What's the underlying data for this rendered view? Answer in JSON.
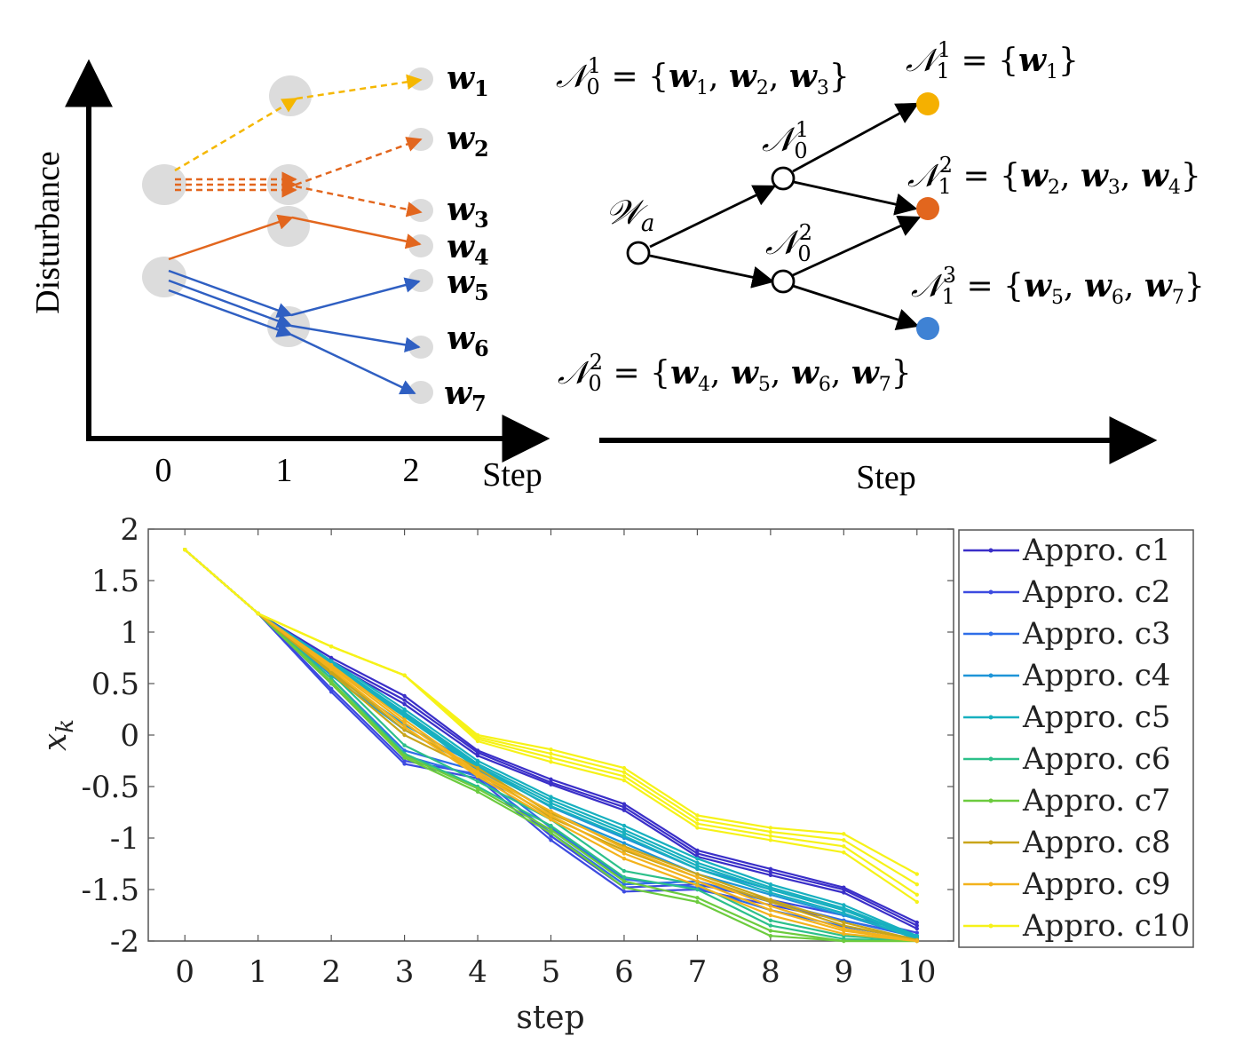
{
  "top_left": {
    "ylabel": "Disturbance",
    "xlabel": "Step",
    "steps": [
      "0",
      "1",
      "2"
    ],
    "outcomes": [
      "w1",
      "w2",
      "w3",
      "w4",
      "w5",
      "w6",
      "w7"
    ],
    "colors": {
      "yellow": "#f5b700",
      "orange": "#e2661e",
      "blue": "#2f5fc2",
      "node": "#dcdcdc"
    }
  },
  "top_right": {
    "xlabel": "Step",
    "root": "Wa",
    "level0": [
      {
        "name": "N0^1",
        "set": [
          "w1",
          "w2",
          "w3"
        ]
      },
      {
        "name": "N0^2",
        "set": [
          "w4",
          "w5",
          "w6",
          "w7"
        ]
      }
    ],
    "level1": [
      {
        "name": "N1^1",
        "set": [
          "w1"
        ],
        "color": "#f5b000"
      },
      {
        "name": "N1^2",
        "set": [
          "w2",
          "w3",
          "w4"
        ],
        "color": "#e2661e"
      },
      {
        "name": "N1^3",
        "set": [
          "w5",
          "w6",
          "w7"
        ],
        "color": "#3f82d4"
      }
    ]
  },
  "chart_data": {
    "type": "line",
    "xlabel": "step",
    "ylabel": "x_k",
    "xlim": [
      -0.5,
      10.5
    ],
    "ylim": [
      -2,
      2
    ],
    "xticks": [
      0,
      1,
      2,
      3,
      4,
      5,
      6,
      7,
      8,
      9,
      10
    ],
    "yticks": [
      2,
      1.5,
      1,
      0.5,
      0,
      -0.5,
      -1,
      -1.5,
      -2
    ],
    "ytick_labels": [
      "2",
      "1.5",
      "1",
      "0.5",
      "0",
      "-0.5",
      "-1",
      "-1.5",
      "-2"
    ],
    "legend_position": "right",
    "series": [
      {
        "name": "Appro. c1",
        "color": "#3a2fc8",
        "trajectories": [
          [
            1.8,
            1.18,
            0.75,
            0.38,
            -0.15,
            -0.43,
            -0.67,
            -1.12,
            -1.3,
            -1.48,
            -1.82
          ],
          [
            1.8,
            1.18,
            0.72,
            0.34,
            -0.17,
            -0.46,
            -0.7,
            -1.15,
            -1.33,
            -1.5,
            -1.85
          ],
          [
            1.8,
            1.18,
            0.7,
            0.3,
            -0.2,
            -0.48,
            -0.73,
            -1.18,
            -1.36,
            -1.53,
            -1.88
          ]
        ]
      },
      {
        "name": "Appro. c2",
        "color": "#3d4be0",
        "trajectories": [
          [
            1.8,
            1.18,
            0.45,
            -0.25,
            -0.38,
            -0.98,
            -1.48,
            -1.45,
            -1.6,
            -1.75,
            -1.92
          ],
          [
            1.8,
            1.18,
            0.42,
            -0.28,
            -0.42,
            -1.02,
            -1.52,
            -1.5,
            -1.65,
            -1.8,
            -1.95
          ]
        ]
      },
      {
        "name": "Appro. c3",
        "color": "#2f6ee8",
        "trajectories": [
          [
            1.8,
            1.18,
            0.5,
            -0.2,
            -0.4,
            -0.95,
            -1.45,
            -1.42,
            -1.62,
            -1.8,
            -1.96
          ],
          [
            1.8,
            1.18,
            0.55,
            -0.15,
            -0.35,
            -0.9,
            -1.4,
            -1.48,
            -1.7,
            -1.86,
            -1.98
          ]
        ]
      },
      {
        "name": "Appro. c4",
        "color": "#1e95d8",
        "trajectories": [
          [
            1.8,
            1.18,
            0.6,
            0.1,
            -0.3,
            -0.7,
            -1.0,
            -1.3,
            -1.5,
            -1.7,
            -1.95
          ],
          [
            1.8,
            1.18,
            0.58,
            0.05,
            -0.33,
            -0.75,
            -1.05,
            -1.35,
            -1.55,
            -1.75,
            -1.97
          ]
        ]
      },
      {
        "name": "Appro. c5",
        "color": "#17b0bf",
        "trajectories": [
          [
            1.8,
            1.18,
            0.72,
            0.25,
            -0.25,
            -0.6,
            -0.88,
            -1.2,
            -1.45,
            -1.65,
            -1.95
          ],
          [
            1.8,
            1.18,
            0.7,
            0.22,
            -0.28,
            -0.63,
            -0.92,
            -1.24,
            -1.48,
            -1.68,
            -1.96
          ],
          [
            1.8,
            1.18,
            0.68,
            0.2,
            -0.3,
            -0.66,
            -0.95,
            -1.27,
            -1.5,
            -1.7,
            -1.97
          ],
          [
            1.8,
            1.18,
            0.66,
            0.18,
            -0.32,
            -0.69,
            -0.98,
            -1.3,
            -1.53,
            -1.73,
            -1.98
          ]
        ]
      },
      {
        "name": "Appro. c6",
        "color": "#2cc08a",
        "trajectories": [
          [
            1.8,
            1.18,
            0.55,
            -0.18,
            -0.5,
            -0.88,
            -1.38,
            -1.5,
            -1.85,
            -1.98,
            -2.0
          ],
          [
            1.8,
            1.18,
            0.6,
            -0.1,
            -0.45,
            -0.82,
            -1.32,
            -1.45,
            -1.8,
            -1.95,
            -2.0
          ]
        ]
      },
      {
        "name": "Appro. c7",
        "color": "#6ccb3e",
        "trajectories": [
          [
            1.8,
            1.18,
            0.5,
            -0.22,
            -0.55,
            -0.95,
            -1.48,
            -1.62,
            -1.95,
            -2.0,
            -2.0
          ],
          [
            1.8,
            1.18,
            0.52,
            -0.2,
            -0.52,
            -0.92,
            -1.42,
            -1.58,
            -1.9,
            -2.0,
            -2.0
          ]
        ]
      },
      {
        "name": "Appro. c8",
        "color": "#c9a51a",
        "trajectories": [
          [
            1.8,
            1.18,
            0.6,
            0.0,
            -0.35,
            -0.8,
            -1.12,
            -1.38,
            -1.62,
            -1.85,
            -1.99
          ],
          [
            1.8,
            1.18,
            0.62,
            0.05,
            -0.32,
            -0.76,
            -1.08,
            -1.35,
            -1.6,
            -1.82,
            -1.99
          ]
        ]
      },
      {
        "name": "Appro. c9",
        "color": "#f3b21c",
        "trajectories": [
          [
            1.8,
            1.18,
            0.66,
            0.12,
            -0.38,
            -0.78,
            -1.15,
            -1.42,
            -1.7,
            -1.9,
            -2.0
          ],
          [
            1.8,
            1.18,
            0.64,
            0.08,
            -0.4,
            -0.82,
            -1.2,
            -1.46,
            -1.75,
            -1.93,
            -2.0
          ],
          [
            1.8,
            1.18,
            0.68,
            0.15,
            -0.36,
            -0.74,
            -1.1,
            -1.38,
            -1.66,
            -1.88,
            -2.0
          ]
        ]
      },
      {
        "name": "Appro. c10",
        "color": "#f6f218",
        "trajectories": [
          [
            1.8,
            1.18,
            0.86,
            0.58,
            0.0,
            -0.14,
            -0.32,
            -0.78,
            -0.9,
            -0.96,
            -1.35
          ],
          [
            1.8,
            1.18,
            0.86,
            0.58,
            -0.02,
            -0.18,
            -0.36,
            -0.82,
            -0.94,
            -1.02,
            -1.45
          ],
          [
            1.8,
            1.18,
            0.86,
            0.58,
            -0.04,
            -0.22,
            -0.4,
            -0.86,
            -0.98,
            -1.08,
            -1.55
          ],
          [
            1.8,
            1.18,
            0.86,
            0.58,
            -0.06,
            -0.26,
            -0.44,
            -0.9,
            -1.02,
            -1.14,
            -1.62
          ]
        ]
      }
    ]
  }
}
